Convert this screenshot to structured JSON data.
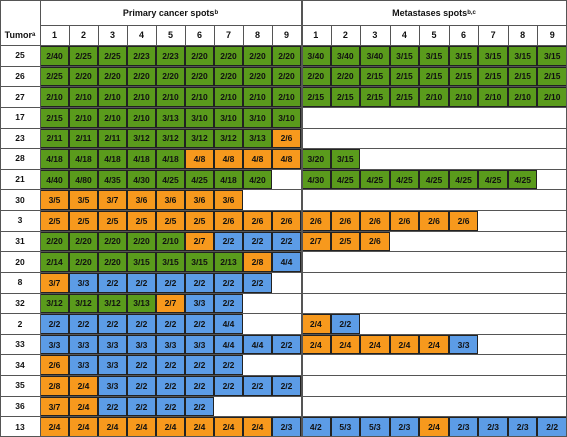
{
  "header": {
    "tumor": "Tumor",
    "tumor_sup": "a",
    "primary": "Primary cancer spots",
    "primary_sup": "b",
    "metastases": "Metastases spots",
    "metastases_sup": "b,c"
  },
  "columns": [
    "1",
    "2",
    "3",
    "4",
    "5",
    "6",
    "7",
    "8",
    "9"
  ],
  "rows": [
    {
      "tumor": "25",
      "primary": [
        [
          "2/40",
          "#5a9b1c"
        ],
        [
          "2/25",
          "#5a9b1c"
        ],
        [
          "2/25",
          "#5a9b1c"
        ],
        [
          "2/23",
          "#5a9b1c"
        ],
        [
          "2/23",
          "#5a9b1c"
        ],
        [
          "2/20",
          "#5a9b1c"
        ],
        [
          "2/20",
          "#5a9b1c"
        ],
        [
          "2/20",
          "#5a9b1c"
        ],
        [
          "2/20",
          "#5a9b1c"
        ]
      ],
      "metastases": [
        [
          "3/40",
          "#5a9b1c"
        ],
        [
          "3/40",
          "#5a9b1c"
        ],
        [
          "3/40",
          "#5a9b1c"
        ],
        [
          "3/15",
          "#5a9b1c"
        ],
        [
          "3/15",
          "#5a9b1c"
        ],
        [
          "3/15",
          "#5a9b1c"
        ],
        [
          "3/15",
          "#5a9b1c"
        ],
        [
          "3/15",
          "#5a9b1c"
        ],
        [
          "3/15",
          "#5a9b1c"
        ]
      ]
    },
    {
      "tumor": "26",
      "primary": [
        [
          "2/25",
          "#5a9b1c"
        ],
        [
          "2/20",
          "#5a9b1c"
        ],
        [
          "2/20",
          "#5a9b1c"
        ],
        [
          "2/20",
          "#5a9b1c"
        ],
        [
          "2/20",
          "#5a9b1c"
        ],
        [
          "2/20",
          "#5a9b1c"
        ],
        [
          "2/20",
          "#5a9b1c"
        ],
        [
          "2/20",
          "#5a9b1c"
        ],
        [
          "2/20",
          "#5a9b1c"
        ]
      ],
      "metastases": [
        [
          "2/20",
          "#5a9b1c"
        ],
        [
          "2/20",
          "#5a9b1c"
        ],
        [
          "2/15",
          "#5a9b1c"
        ],
        [
          "2/15",
          "#5a9b1c"
        ],
        [
          "2/15",
          "#5a9b1c"
        ],
        [
          "2/15",
          "#5a9b1c"
        ],
        [
          "2/15",
          "#5a9b1c"
        ],
        [
          "2/15",
          "#5a9b1c"
        ],
        [
          "2/15",
          "#5a9b1c"
        ]
      ]
    },
    {
      "tumor": "27",
      "primary": [
        [
          "2/10",
          "#5a9b1c"
        ],
        [
          "2/10",
          "#5a9b1c"
        ],
        [
          "2/10",
          "#5a9b1c"
        ],
        [
          "2/10",
          "#5a9b1c"
        ],
        [
          "2/10",
          "#5a9b1c"
        ],
        [
          "2/10",
          "#5a9b1c"
        ],
        [
          "2/10",
          "#5a9b1c"
        ],
        [
          "2/10",
          "#5a9b1c"
        ],
        [
          "2/10",
          "#5a9b1c"
        ]
      ],
      "metastases": [
        [
          "2/15",
          "#5a9b1c"
        ],
        [
          "2/15",
          "#5a9b1c"
        ],
        [
          "2/15",
          "#5a9b1c"
        ],
        [
          "2/15",
          "#5a9b1c"
        ],
        [
          "2/10",
          "#5a9b1c"
        ],
        [
          "2/10",
          "#5a9b1c"
        ],
        [
          "2/10",
          "#5a9b1c"
        ],
        [
          "2/10",
          "#5a9b1c"
        ],
        [
          "2/10",
          "#5a9b1c"
        ]
      ]
    },
    {
      "tumor": "17",
      "primary": [
        [
          "2/15",
          "#5a9b1c"
        ],
        [
          "2/10",
          "#5a9b1c"
        ],
        [
          "2/10",
          "#5a9b1c"
        ],
        [
          "2/10",
          "#5a9b1c"
        ],
        [
          "3/13",
          "#5a9b1c"
        ],
        [
          "3/10",
          "#5a9b1c"
        ],
        [
          "3/10",
          "#5a9b1c"
        ],
        [
          "3/10",
          "#5a9b1c"
        ],
        [
          "3/10",
          "#5a9b1c"
        ]
      ],
      "metastases": []
    },
    {
      "tumor": "23",
      "primary": [
        [
          "2/11",
          "#5a9b1c"
        ],
        [
          "2/11",
          "#5a9b1c"
        ],
        [
          "2/11",
          "#5a9b1c"
        ],
        [
          "3/12",
          "#5a9b1c"
        ],
        [
          "3/12",
          "#5a9b1c"
        ],
        [
          "3/12",
          "#5a9b1c"
        ],
        [
          "3/12",
          "#5a9b1c"
        ],
        [
          "3/13",
          "#5a9b1c"
        ],
        [
          "2/6",
          "#f7991d"
        ]
      ],
      "metastases": []
    },
    {
      "tumor": "28",
      "primary": [
        [
          "4/18",
          "#5a9b1c"
        ],
        [
          "4/18",
          "#5a9b1c"
        ],
        [
          "4/18",
          "#5a9b1c"
        ],
        [
          "4/18",
          "#5a9b1c"
        ],
        [
          "4/18",
          "#5a9b1c"
        ],
        [
          "4/8",
          "#f7991d"
        ],
        [
          "4/8",
          "#f7991d"
        ],
        [
          "4/8",
          "#f7991d"
        ],
        [
          "4/8",
          "#f7991d"
        ]
      ],
      "metastases": [
        [
          "3/20",
          "#5a9b1c"
        ],
        [
          "3/15",
          "#5a9b1c"
        ]
      ]
    },
    {
      "tumor": "21",
      "primary": [
        [
          "4/40",
          "#5a9b1c"
        ],
        [
          "4/80",
          "#5a9b1c"
        ],
        [
          "4/35",
          "#5a9b1c"
        ],
        [
          "4/30",
          "#5a9b1c"
        ],
        [
          "4/25",
          "#5a9b1c"
        ],
        [
          "4/25",
          "#5a9b1c"
        ],
        [
          "4/18",
          "#5a9b1c"
        ],
        [
          "4/20",
          "#5a9b1c"
        ]
      ],
      "metastases": [
        [
          "4/30",
          "#5a9b1c"
        ],
        [
          "4/25",
          "#5a9b1c"
        ],
        [
          "4/25",
          "#5a9b1c"
        ],
        [
          "4/25",
          "#5a9b1c"
        ],
        [
          "4/25",
          "#5a9b1c"
        ],
        [
          "4/25",
          "#5a9b1c"
        ],
        [
          "4/25",
          "#5a9b1c"
        ],
        [
          "4/25",
          "#5a9b1c"
        ]
      ]
    },
    {
      "tumor": "30",
      "primary": [
        [
          "3/5",
          "#f7991d"
        ],
        [
          "3/5",
          "#f7991d"
        ],
        [
          "3/7",
          "#f7991d"
        ],
        [
          "3/6",
          "#f7991d"
        ],
        [
          "3/6",
          "#f7991d"
        ],
        [
          "3/6",
          "#f7991d"
        ],
        [
          "3/6",
          "#f7991d"
        ]
      ],
      "metastases": []
    },
    {
      "tumor": "3",
      "primary": [
        [
          "2/5",
          "#f7991d"
        ],
        [
          "2/5",
          "#f7991d"
        ],
        [
          "2/5",
          "#f7991d"
        ],
        [
          "2/5",
          "#f7991d"
        ],
        [
          "2/5",
          "#f7991d"
        ],
        [
          "2/5",
          "#f7991d"
        ],
        [
          "2/6",
          "#f7991d"
        ],
        [
          "2/6",
          "#f7991d"
        ],
        [
          "2/6",
          "#f7991d"
        ]
      ],
      "metastases": [
        [
          "2/6",
          "#f7991d"
        ],
        [
          "2/6",
          "#f7991d"
        ],
        [
          "2/6",
          "#f7991d"
        ],
        [
          "2/6",
          "#f7991d"
        ],
        [
          "2/6",
          "#f7991d"
        ],
        [
          "2/6",
          "#f7991d"
        ]
      ]
    },
    {
      "tumor": "31",
      "primary": [
        [
          "2/20",
          "#5a9b1c"
        ],
        [
          "2/20",
          "#5a9b1c"
        ],
        [
          "2/20",
          "#5a9b1c"
        ],
        [
          "2/20",
          "#5a9b1c"
        ],
        [
          "2/10",
          "#5a9b1c"
        ],
        [
          "2/7",
          "#f7991d"
        ],
        [
          "2/2",
          "#5c9ce6"
        ],
        [
          "2/2",
          "#5c9ce6"
        ],
        [
          "2/2",
          "#5c9ce6"
        ]
      ],
      "metastases": [
        [
          "2/7",
          "#f7991d"
        ],
        [
          "2/5",
          "#f7991d"
        ],
        [
          "2/6",
          "#f7991d"
        ]
      ]
    },
    {
      "tumor": "20",
      "primary": [
        [
          "2/14",
          "#5a9b1c"
        ],
        [
          "2/20",
          "#5a9b1c"
        ],
        [
          "2/20",
          "#5a9b1c"
        ],
        [
          "3/15",
          "#5a9b1c"
        ],
        [
          "3/15",
          "#5a9b1c"
        ],
        [
          "3/15",
          "#5a9b1c"
        ],
        [
          "2/13",
          "#5a9b1c"
        ],
        [
          "2/8",
          "#f7991d"
        ],
        [
          "4/4",
          "#5c9ce6"
        ]
      ],
      "metastases": []
    },
    {
      "tumor": "8",
      "primary": [
        [
          "3/7",
          "#f7991d"
        ],
        [
          "3/3",
          "#5c9ce6"
        ],
        [
          "2/2",
          "#5c9ce6"
        ],
        [
          "2/2",
          "#5c9ce6"
        ],
        [
          "2/2",
          "#5c9ce6"
        ],
        [
          "2/2",
          "#5c9ce6"
        ],
        [
          "2/2",
          "#5c9ce6"
        ],
        [
          "2/2",
          "#5c9ce6"
        ]
      ],
      "metastases": []
    },
    {
      "tumor": "32",
      "primary": [
        [
          "3/12",
          "#5a9b1c"
        ],
        [
          "3/12",
          "#5a9b1c"
        ],
        [
          "3/12",
          "#5a9b1c"
        ],
        [
          "3/13",
          "#5a9b1c"
        ],
        [
          "2/7",
          "#f7991d"
        ],
        [
          "3/3",
          "#5c9ce6"
        ],
        [
          "2/2",
          "#5c9ce6"
        ]
      ],
      "metastases": []
    },
    {
      "tumor": "2",
      "primary": [
        [
          "2/2",
          "#5c9ce6"
        ],
        [
          "2/2",
          "#5c9ce6"
        ],
        [
          "2/2",
          "#5c9ce6"
        ],
        [
          "2/2",
          "#5c9ce6"
        ],
        [
          "2/2",
          "#5c9ce6"
        ],
        [
          "2/2",
          "#5c9ce6"
        ],
        [
          "4/4",
          "#5c9ce6"
        ]
      ],
      "metastases": [
        [
          "2/4",
          "#f7991d"
        ],
        [
          "2/2",
          "#5c9ce6"
        ]
      ]
    },
    {
      "tumor": "33",
      "primary": [
        [
          "3/3",
          "#5c9ce6"
        ],
        [
          "3/3",
          "#5c9ce6"
        ],
        [
          "3/3",
          "#5c9ce6"
        ],
        [
          "3/3",
          "#5c9ce6"
        ],
        [
          "3/3",
          "#5c9ce6"
        ],
        [
          "3/3",
          "#5c9ce6"
        ],
        [
          "4/4",
          "#5c9ce6"
        ],
        [
          "4/4",
          "#5c9ce6"
        ],
        [
          "2/2",
          "#5c9ce6"
        ]
      ],
      "metastases": [
        [
          "2/4",
          "#f7991d"
        ],
        [
          "2/4",
          "#f7991d"
        ],
        [
          "2/4",
          "#f7991d"
        ],
        [
          "2/4",
          "#f7991d"
        ],
        [
          "2/4",
          "#f7991d"
        ],
        [
          "3/3",
          "#5c9ce6"
        ]
      ]
    },
    {
      "tumor": "34",
      "primary": [
        [
          "2/6",
          "#f7991d"
        ],
        [
          "3/3",
          "#5c9ce6"
        ],
        [
          "3/3",
          "#5c9ce6"
        ],
        [
          "2/2",
          "#5c9ce6"
        ],
        [
          "2/2",
          "#5c9ce6"
        ],
        [
          "2/2",
          "#5c9ce6"
        ],
        [
          "2/2",
          "#5c9ce6"
        ]
      ],
      "metastases": []
    },
    {
      "tumor": "35",
      "primary": [
        [
          "2/8",
          "#f7991d"
        ],
        [
          "2/4",
          "#f7991d"
        ],
        [
          "3/3",
          "#5c9ce6"
        ],
        [
          "2/2",
          "#5c9ce6"
        ],
        [
          "2/2",
          "#5c9ce6"
        ],
        [
          "2/2",
          "#5c9ce6"
        ],
        [
          "2/2",
          "#5c9ce6"
        ],
        [
          "2/2",
          "#5c9ce6"
        ],
        [
          "2/2",
          "#5c9ce6"
        ]
      ],
      "metastases": []
    },
    {
      "tumor": "36",
      "primary": [
        [
          "3/7",
          "#f7991d"
        ],
        [
          "2/4",
          "#f7991d"
        ],
        [
          "2/2",
          "#5c9ce6"
        ],
        [
          "2/2",
          "#5c9ce6"
        ],
        [
          "2/2",
          "#5c9ce6"
        ],
        [
          "2/2",
          "#5c9ce6"
        ]
      ],
      "metastases": []
    },
    {
      "tumor": "13",
      "primary": [
        [
          "2/4",
          "#f7991d"
        ],
        [
          "2/4",
          "#f7991d"
        ],
        [
          "2/4",
          "#f7991d"
        ],
        [
          "2/4",
          "#f7991d"
        ],
        [
          "2/4",
          "#f7991d"
        ],
        [
          "2/4",
          "#f7991d"
        ],
        [
          "2/4",
          "#f7991d"
        ],
        [
          "2/4",
          "#f7991d"
        ],
        [
          "2/3",
          "#5c9ce6"
        ]
      ],
      "metastases": [
        [
          "4/2",
          "#5c9ce6"
        ],
        [
          "5/3",
          "#5c9ce6"
        ],
        [
          "5/3",
          "#5c9ce6"
        ],
        [
          "2/3",
          "#5c9ce6"
        ],
        [
          "2/4",
          "#f7991d"
        ],
        [
          "2/3",
          "#5c9ce6"
        ],
        [
          "2/3",
          "#5c9ce6"
        ],
        [
          "2/3",
          "#5c9ce6"
        ],
        [
          "2/2",
          "#5c9ce6"
        ]
      ]
    }
  ]
}
